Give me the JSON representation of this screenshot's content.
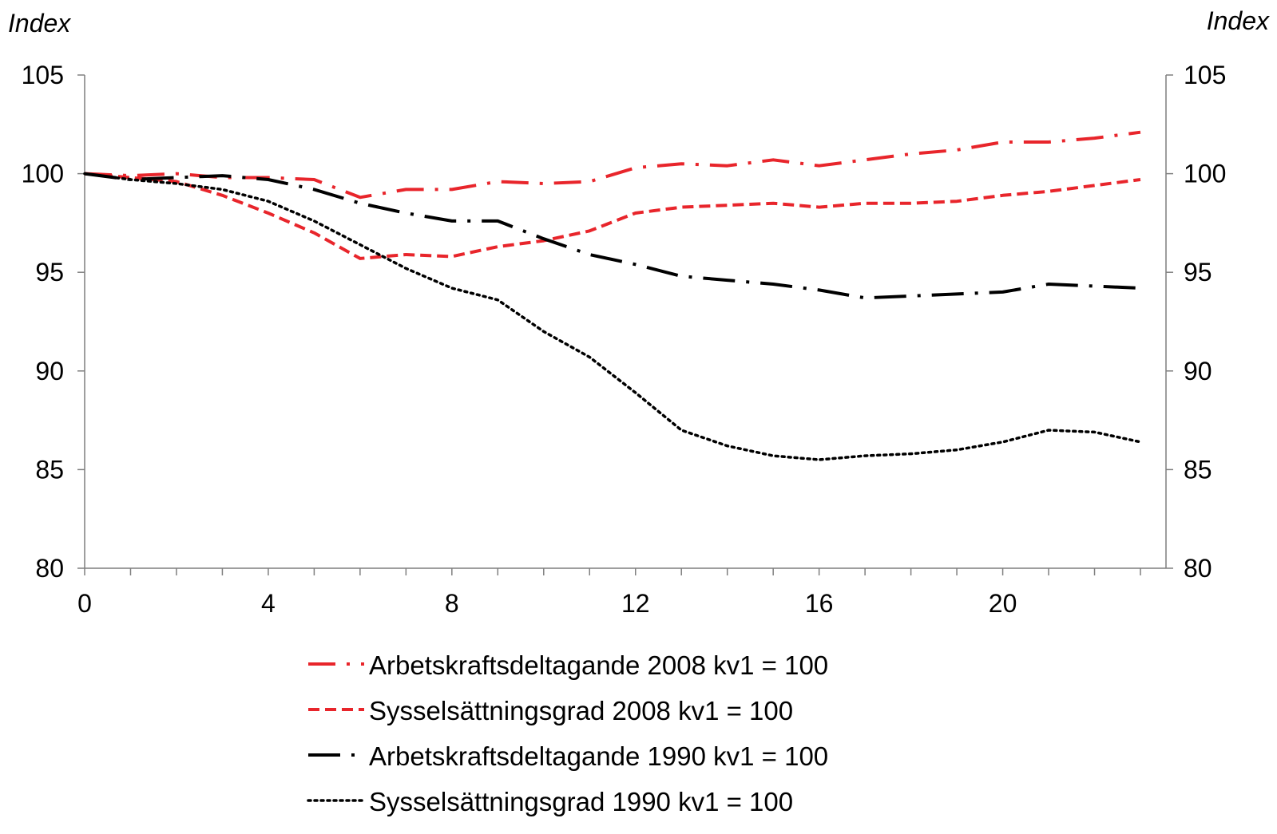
{
  "chart_data": {
    "type": "line",
    "y_left_label": "Index",
    "y_right_label": "Index",
    "ylim": [
      80,
      105
    ],
    "y_ticks": [
      80,
      85,
      90,
      95,
      100,
      105
    ],
    "xlim": [
      0,
      23
    ],
    "x_ticks": [
      0,
      4,
      8,
      12,
      16,
      20
    ],
    "x": [
      0,
      1,
      2,
      3,
      4,
      5,
      6,
      7,
      8,
      9,
      10,
      11,
      12,
      13,
      14,
      15,
      16,
      17,
      18,
      19,
      20,
      21,
      22,
      23
    ],
    "series": [
      {
        "name": "Arbetskraftsdeltagande 2008 kv1 = 100",
        "color": "#e8252b",
        "style": "dash-dot",
        "values": [
          100,
          99.9,
          100.0,
          99.8,
          99.8,
          99.7,
          98.8,
          99.2,
          99.2,
          99.6,
          99.5,
          99.6,
          100.3,
          100.5,
          100.4,
          100.7,
          100.4,
          100.7,
          101.0,
          101.2,
          101.6,
          101.6,
          101.8,
          102.1
        ]
      },
      {
        "name": "Sysselsättningsgrad 2008 kv1 = 100",
        "color": "#e8252b",
        "style": "dash",
        "values": [
          100,
          99.8,
          99.6,
          98.9,
          98.0,
          97.0,
          95.7,
          95.9,
          95.8,
          96.3,
          96.6,
          97.1,
          98.0,
          98.3,
          98.4,
          98.5,
          98.3,
          98.5,
          98.5,
          98.6,
          98.9,
          99.1,
          99.4,
          99.7
        ]
      },
      {
        "name": "Arbetskraftsdeltagande 1990 kv1 = 100",
        "color": "#000000",
        "style": "long-dash-dot",
        "values": [
          100,
          99.7,
          99.8,
          99.9,
          99.7,
          99.2,
          98.5,
          98.0,
          97.6,
          97.6,
          96.7,
          95.9,
          95.4,
          94.8,
          94.6,
          94.4,
          94.1,
          93.7,
          93.8,
          93.9,
          94.0,
          94.4,
          94.3,
          94.2
        ]
      },
      {
        "name": "Sysselsättningsgrad 1990 kv1 = 100",
        "color": "#000000",
        "style": "dot",
        "values": [
          100,
          99.7,
          99.5,
          99.2,
          98.6,
          97.6,
          96.4,
          95.2,
          94.2,
          93.6,
          92.0,
          90.7,
          88.9,
          87.0,
          86.2,
          85.7,
          85.5,
          85.7,
          85.8,
          86.0,
          86.4,
          87.0,
          86.9,
          86.4
        ]
      }
    ]
  }
}
